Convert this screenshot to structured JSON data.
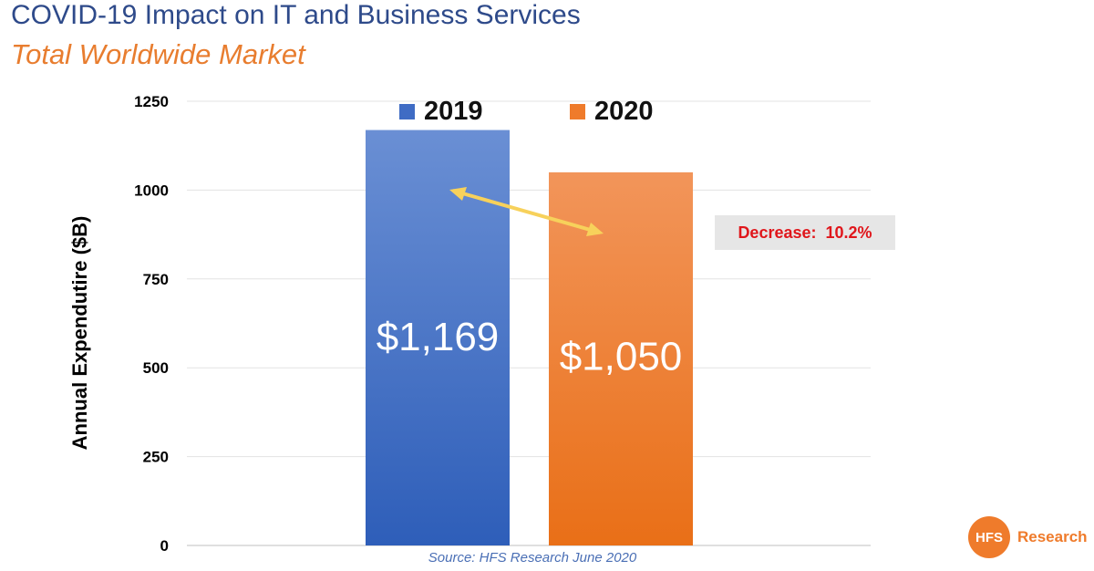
{
  "header": {
    "title": "COVID-19 Impact on IT and Business Services",
    "subtitle": "Total Worldwide Market"
  },
  "chart_data": {
    "type": "bar",
    "categories": [
      "2019",
      "2020"
    ],
    "values": [
      1169,
      1050
    ],
    "value_labels": [
      "$1,169",
      "$1,050"
    ],
    "colors": [
      "#3f6cc4",
      "#ef7b2b"
    ],
    "ylabel": "Annual Expendutire ($B)",
    "ylim": [
      0,
      1250
    ],
    "yticks": [
      0,
      250,
      500,
      750,
      1000,
      1250
    ],
    "grid": true,
    "legend": [
      {
        "label": "2019",
        "color": "#3f6cc4"
      },
      {
        "label": "2020",
        "color": "#ef7b2b"
      }
    ],
    "legend_position": "top",
    "annotation": {
      "text": "Decrease:  10.2%",
      "arrow_color": "#f7d15b"
    }
  },
  "footer": {
    "source": "Source: HFS Research June 2020"
  },
  "brand": {
    "logo_text": "HFS",
    "name": "Research",
    "color": "#ef7b2b"
  }
}
